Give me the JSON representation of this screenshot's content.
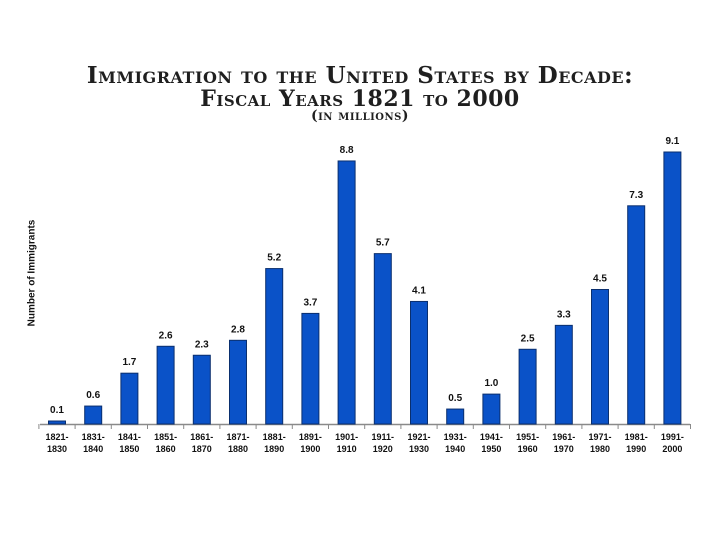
{
  "chart_data": {
    "type": "bar",
    "title": "Immigration to the United States by Decade:",
    "subtitle_line": "Fiscal Years 1821 to 2000",
    "units_note": "(in millions)",
    "xlabel": "",
    "ylabel": "Number of Immigrants",
    "ylim": [
      0,
      9.5
    ],
    "grid": false,
    "legend": "none",
    "categories": [
      [
        "1821-",
        "1830"
      ],
      [
        "1831-",
        "1840"
      ],
      [
        "1841-",
        "1850"
      ],
      [
        "1851-",
        "1860"
      ],
      [
        "1861-",
        "1870"
      ],
      [
        "1871-",
        "1880"
      ],
      [
        "1881-",
        "1890"
      ],
      [
        "1891-",
        "1900"
      ],
      [
        "1901-",
        "1910"
      ],
      [
        "1911-",
        "1920"
      ],
      [
        "1921-",
        "1930"
      ],
      [
        "1931-",
        "1940"
      ],
      [
        "1941-",
        "1950"
      ],
      [
        "1951-",
        "1960"
      ],
      [
        "1961-",
        "1970"
      ],
      [
        "1971-",
        "1980"
      ],
      [
        "1981-",
        "1990"
      ],
      [
        "1991-",
        "2000"
      ]
    ],
    "values": [
      0.1,
      0.6,
      1.7,
      2.6,
      2.3,
      2.8,
      5.2,
      3.7,
      8.8,
      5.7,
      4.1,
      0.5,
      1.0,
      2.5,
      3.3,
      4.5,
      7.3,
      9.1
    ],
    "data_labels": [
      "0.1",
      "0.6",
      "1.7",
      "2.6",
      "2.3",
      "2.8",
      "5.2",
      "3.7",
      "8.8",
      "5.7",
      "4.1",
      "0.5",
      "1.0",
      "2.5",
      "3.3",
      "4.5",
      "7.3",
      "9.1"
    ],
    "bar_color": "#0a52c8",
    "bar_edge_color": "#0a2f6e",
    "axis_color": "#8a8a8a"
  }
}
